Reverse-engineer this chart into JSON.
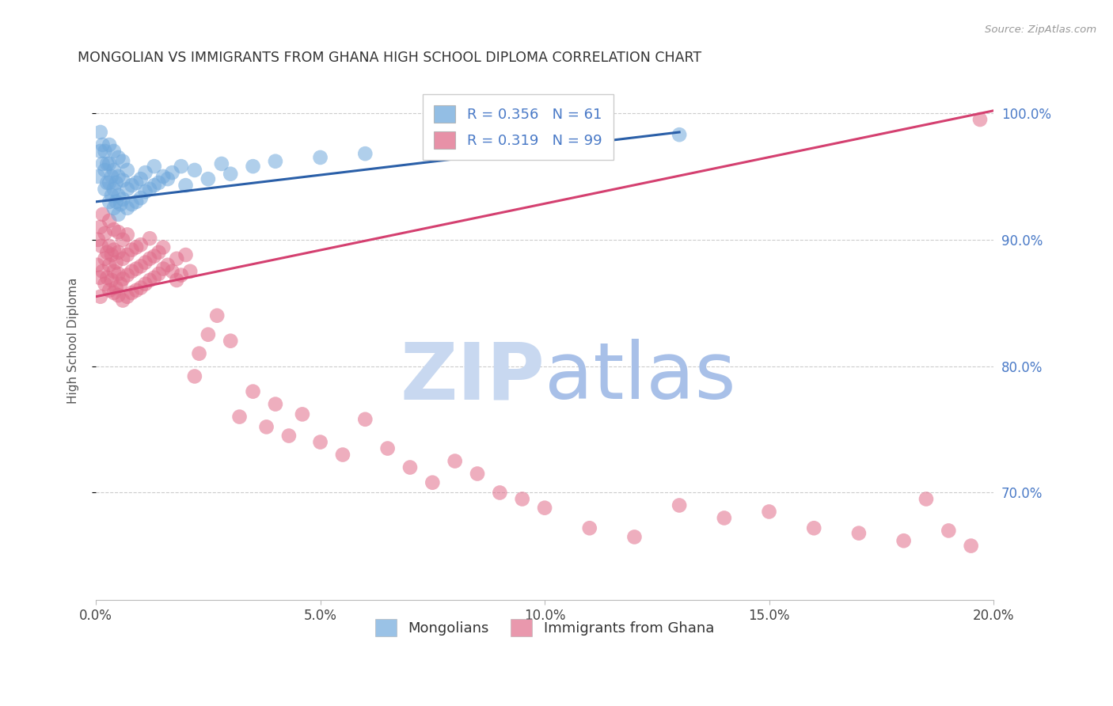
{
  "title": "MONGOLIAN VS IMMIGRANTS FROM GHANA HIGH SCHOOL DIPLOMA CORRELATION CHART",
  "source": "Source: ZipAtlas.com",
  "ylabel": "High School Diploma",
  "legend_mongolians": "Mongolians",
  "legend_ghana": "Immigrants from Ghana",
  "R_mongolian": 0.356,
  "N_mongolian": 61,
  "R_ghana": 0.319,
  "N_ghana": 99,
  "blue_color": "#6fa8dc",
  "pink_color": "#e06c8a",
  "blue_line_color": "#2a5fa8",
  "pink_line_color": "#d44070",
  "watermark_zip_color": "#c8d8f0",
  "watermark_atlas_color": "#a8c0e8",
  "right_label_color": "#4a7ac7",
  "x_min": 0.0,
  "x_max": 0.2,
  "y_min": 0.615,
  "y_max": 1.025,
  "yticks": [
    0.7,
    0.8,
    0.9,
    1.0
  ],
  "xticks": [
    0.0,
    0.05,
    0.1,
    0.15,
    0.2
  ],
  "blue_line_x0": 0.0,
  "blue_line_y0": 0.93,
  "blue_line_x1": 0.13,
  "blue_line_y1": 0.985,
  "pink_line_x0": 0.0,
  "pink_line_y0": 0.855,
  "pink_line_x1": 0.2,
  "pink_line_y1": 1.002,
  "mongolian_x": [
    0.0005,
    0.001,
    0.001,
    0.0015,
    0.0015,
    0.002,
    0.002,
    0.002,
    0.0025,
    0.0025,
    0.003,
    0.003,
    0.003,
    0.003,
    0.0035,
    0.0035,
    0.004,
    0.004,
    0.004,
    0.004,
    0.0045,
    0.0045,
    0.005,
    0.005,
    0.005,
    0.005,
    0.0055,
    0.006,
    0.006,
    0.006,
    0.007,
    0.007,
    0.007,
    0.008,
    0.008,
    0.009,
    0.009,
    0.01,
    0.01,
    0.011,
    0.011,
    0.012,
    0.013,
    0.013,
    0.014,
    0.015,
    0.016,
    0.017,
    0.019,
    0.02,
    0.022,
    0.025,
    0.028,
    0.03,
    0.035,
    0.04,
    0.05,
    0.06,
    0.08,
    0.1,
    0.13
  ],
  "mongolian_y": [
    0.95,
    0.97,
    0.985,
    0.96,
    0.975,
    0.94,
    0.955,
    0.97,
    0.945,
    0.96,
    0.93,
    0.945,
    0.96,
    0.975,
    0.935,
    0.95,
    0.925,
    0.94,
    0.955,
    0.97,
    0.93,
    0.945,
    0.92,
    0.935,
    0.95,
    0.965,
    0.928,
    0.932,
    0.947,
    0.962,
    0.925,
    0.94,
    0.955,
    0.928,
    0.943,
    0.93,
    0.945,
    0.933,
    0.948,
    0.938,
    0.953,
    0.94,
    0.943,
    0.958,
    0.945,
    0.95,
    0.948,
    0.953,
    0.958,
    0.943,
    0.955,
    0.948,
    0.96,
    0.952,
    0.958,
    0.962,
    0.965,
    0.968,
    0.972,
    0.978,
    0.983
  ],
  "ghana_x": [
    0.0003,
    0.0005,
    0.0008,
    0.001,
    0.001,
    0.0012,
    0.0015,
    0.0015,
    0.002,
    0.002,
    0.002,
    0.0025,
    0.0025,
    0.003,
    0.003,
    0.003,
    0.003,
    0.0035,
    0.0035,
    0.004,
    0.004,
    0.004,
    0.004,
    0.0045,
    0.0045,
    0.005,
    0.005,
    0.005,
    0.005,
    0.0055,
    0.006,
    0.006,
    0.006,
    0.006,
    0.007,
    0.007,
    0.007,
    0.007,
    0.008,
    0.008,
    0.008,
    0.009,
    0.009,
    0.009,
    0.01,
    0.01,
    0.01,
    0.011,
    0.011,
    0.012,
    0.012,
    0.012,
    0.013,
    0.013,
    0.014,
    0.014,
    0.015,
    0.015,
    0.016,
    0.017,
    0.018,
    0.018,
    0.019,
    0.02,
    0.021,
    0.022,
    0.023,
    0.025,
    0.027,
    0.03,
    0.032,
    0.035,
    0.038,
    0.04,
    0.043,
    0.046,
    0.05,
    0.055,
    0.06,
    0.065,
    0.07,
    0.075,
    0.08,
    0.085,
    0.09,
    0.095,
    0.1,
    0.11,
    0.12,
    0.13,
    0.14,
    0.15,
    0.16,
    0.17,
    0.18,
    0.185,
    0.19,
    0.195,
    0.197
  ],
  "ghana_y": [
    0.88,
    0.9,
    0.87,
    0.91,
    0.855,
    0.895,
    0.875,
    0.92,
    0.865,
    0.885,
    0.905,
    0.87,
    0.89,
    0.86,
    0.88,
    0.895,
    0.915,
    0.868,
    0.888,
    0.858,
    0.875,
    0.892,
    0.908,
    0.862,
    0.882,
    0.856,
    0.873,
    0.89,
    0.906,
    0.865,
    0.852,
    0.869,
    0.885,
    0.9,
    0.855,
    0.872,
    0.888,
    0.904,
    0.858,
    0.875,
    0.892,
    0.86,
    0.877,
    0.894,
    0.862,
    0.879,
    0.896,
    0.865,
    0.882,
    0.868,
    0.885,
    0.901,
    0.87,
    0.887,
    0.873,
    0.89,
    0.877,
    0.894,
    0.88,
    0.875,
    0.868,
    0.885,
    0.872,
    0.888,
    0.875,
    0.792,
    0.81,
    0.825,
    0.84,
    0.82,
    0.76,
    0.78,
    0.752,
    0.77,
    0.745,
    0.762,
    0.74,
    0.73,
    0.758,
    0.735,
    0.72,
    0.708,
    0.725,
    0.715,
    0.7,
    0.695,
    0.688,
    0.672,
    0.665,
    0.69,
    0.68,
    0.685,
    0.672,
    0.668,
    0.662,
    0.695,
    0.67,
    0.658,
    0.995
  ]
}
